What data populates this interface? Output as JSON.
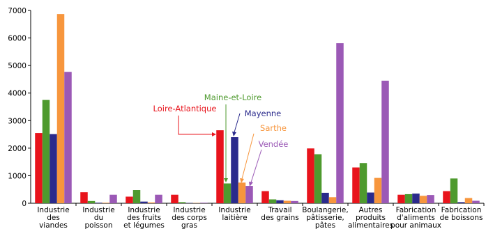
{
  "chart_data": {
    "type": "bar",
    "ylim": [
      0,
      7000
    ],
    "yticks": [
      0,
      1000,
      2000,
      3000,
      4000,
      5000,
      6000,
      7000
    ],
    "categories": [
      [
        "Industrie",
        "des",
        "viandes"
      ],
      [
        "Industrie",
        "du",
        "poisson"
      ],
      [
        "Industrie",
        "des fruits",
        "et légumes"
      ],
      [
        "Industrie",
        "des corps",
        "gras"
      ],
      [
        "Industrie",
        "laitière"
      ],
      [
        "Travail",
        "des grains"
      ],
      [
        "Boulangerie,",
        "pâtisserie,",
        "pâtes"
      ],
      [
        "Autres",
        "produits",
        "alimentaires"
      ],
      [
        "Fabrication",
        "d'aliments",
        "pour animaux"
      ],
      [
        "Fabrication",
        "de boissons"
      ]
    ],
    "series": [
      {
        "name": "Loire-Atlantique",
        "color": "#e8141c",
        "values": [
          2550,
          400,
          240,
          310,
          2650,
          440,
          1990,
          1300,
          310,
          440
        ]
      },
      {
        "name": "Maine-et-Loire",
        "color": "#4e9a2e",
        "values": [
          3750,
          80,
          480,
          40,
          720,
          140,
          1780,
          1460,
          330,
          900
        ]
      },
      {
        "name": "Mayenne",
        "color": "#2a2a8c",
        "values": [
          2510,
          20,
          60,
          10,
          2400,
          110,
          380,
          390,
          350,
          40
        ]
      },
      {
        "name": "Sarthe",
        "color": "#f7963d",
        "values": [
          6870,
          20,
          30,
          10,
          750,
          90,
          220,
          920,
          270,
          190
        ]
      },
      {
        "name": "Vendée",
        "color": "#9b59b6",
        "values": [
          4770,
          310,
          310,
          20,
          630,
          80,
          5810,
          4450,
          300,
          90
        ]
      }
    ]
  }
}
